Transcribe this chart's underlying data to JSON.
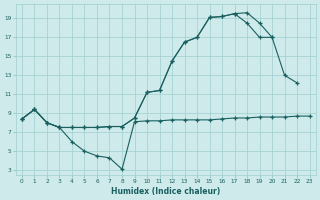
{
  "xlabel": "Humidex (Indice chaleur)",
  "bg_color": "#ceeaea",
  "grid_color": "#9fcece",
  "line_color": "#1a6060",
  "xlim": [
    -0.5,
    23.5
  ],
  "ylim": [
    2.5,
    20.5
  ],
  "xticks": [
    0,
    1,
    2,
    3,
    4,
    5,
    6,
    7,
    8,
    9,
    10,
    11,
    12,
    13,
    14,
    15,
    16,
    17,
    18,
    19,
    20,
    21,
    22,
    23
  ],
  "yticks": [
    3,
    5,
    7,
    9,
    11,
    13,
    15,
    17,
    19
  ],
  "line1_x": [
    0,
    1,
    2,
    3,
    4,
    5,
    6,
    7,
    8,
    9,
    10,
    11,
    12,
    13,
    14,
    15,
    16,
    17,
    18,
    19,
    20,
    21,
    22,
    23
  ],
  "line1_y": [
    8.4,
    9.4,
    8.0,
    7.5,
    6.0,
    5.0,
    4.5,
    4.3,
    3.1,
    8.1,
    8.2,
    8.2,
    8.3,
    8.3,
    8.3,
    8.3,
    8.4,
    8.5,
    8.5,
    8.6,
    8.6,
    8.6,
    8.7,
    8.7
  ],
  "line2_x": [
    0,
    1,
    2,
    3,
    4,
    5,
    6,
    7,
    8,
    9,
    10,
    11,
    12,
    13,
    14,
    15,
    16,
    17,
    18,
    19,
    20,
    21,
    22
  ],
  "line2_y": [
    8.4,
    9.4,
    8.0,
    7.5,
    7.5,
    7.5,
    7.5,
    7.6,
    7.6,
    8.5,
    11.2,
    11.4,
    14.5,
    16.5,
    17.0,
    19.1,
    19.2,
    19.5,
    19.6,
    18.5,
    17.0,
    13.0,
    12.2
  ],
  "line3_x": [
    0,
    1,
    2,
    3,
    4,
    5,
    6,
    7,
    8,
    9,
    10,
    11,
    12,
    13,
    14,
    15,
    16,
    17,
    18,
    19,
    20
  ],
  "line3_y": [
    8.4,
    9.4,
    8.0,
    7.5,
    7.5,
    7.5,
    7.5,
    7.6,
    7.6,
    8.5,
    11.2,
    11.4,
    14.5,
    16.5,
    17.0,
    19.1,
    19.2,
    19.5,
    18.5,
    17.0,
    17.0
  ]
}
